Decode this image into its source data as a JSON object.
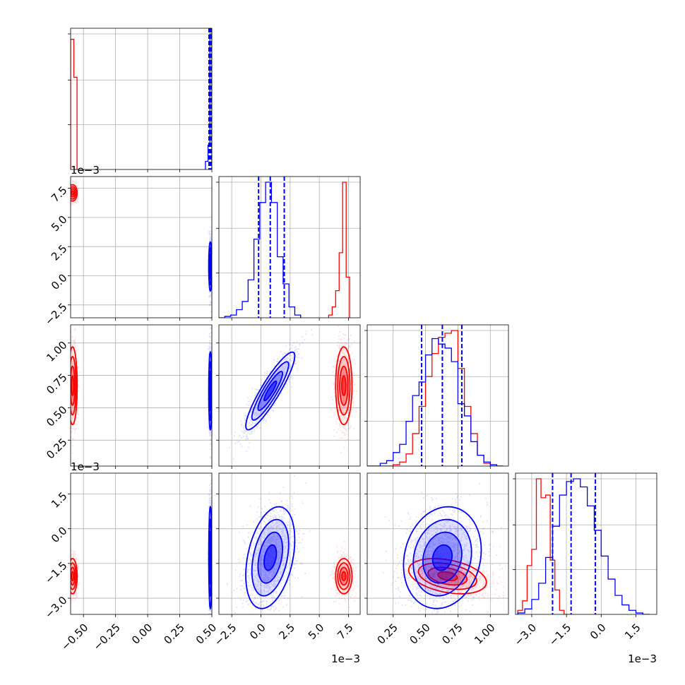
{
  "chart_data": {
    "type": "corner",
    "grid": true,
    "colors": {
      "red": "#ff0000",
      "blue": "#0000ff",
      "grid": "#b0b0b0"
    },
    "params": [
      {
        "lim": [
          -0.6,
          0.5
        ],
        "ticks": [
          "−0.50",
          "−0.25",
          "0.00",
          "0.25",
          "0.50"
        ],
        "tick_values": [
          -0.5,
          -0.25,
          0.0,
          0.25,
          0.5
        ],
        "offset": ""
      },
      {
        "lim": [
          -3.6,
          8.5
        ],
        "ticks": [
          "−2.5",
          "0.0",
          "2.5",
          "5.0",
          "7.5"
        ],
        "tick_values": [
          -2.5,
          0.0,
          2.5,
          5.0,
          7.5
        ],
        "offset": "1e−3"
      },
      {
        "lim": [
          0.05,
          1.14
        ],
        "ticks": [
          "0.25",
          "0.50",
          "0.75",
          "1.00"
        ],
        "tick_values": [
          0.25,
          0.5,
          0.75,
          1.0
        ],
        "offset": ""
      },
      {
        "lim": [
          -3.7,
          2.4
        ],
        "ticks": [
          "−3.0",
          "−1.5",
          "0.0",
          "1.5"
        ],
        "tick_values": [
          -3.0,
          -1.5,
          0.0,
          1.5
        ],
        "offset": "1e−3"
      }
    ],
    "series": [
      {
        "color": "red",
        "mean": [
          -0.585,
          7.1,
          0.67,
          -2.05
        ],
        "std": [
          0.018,
          0.35,
          0.15,
          0.38
        ],
        "corr": {
          "1-2": 0.0,
          "1-3": 0.0,
          "2-3": -0.35
        },
        "hist": [
          {
            "edges": [
              -0.6,
              -0.575,
              -0.55
            ],
            "counts": [
              0.96,
              0.68
            ]
          },
          {
            "edges": [
              5.8,
              6.1,
              6.4,
              6.7,
              7.0,
              7.3,
              7.6
            ],
            "counts": [
              0.02,
              0.08,
              0.2,
              0.48,
              1.0,
              0.3
            ]
          },
          {
            "edges": [
              0.05,
              0.1,
              0.15,
              0.2,
              0.25,
              0.3,
              0.35,
              0.4,
              0.45,
              0.5,
              0.55,
              0.6,
              0.65,
              0.7,
              0.75,
              0.8,
              0.85,
              0.9,
              0.95,
              1.0,
              1.05,
              1.1
            ],
            "counts": [
              0,
              0,
              0,
              0,
              0.01,
              0.03,
              0.09,
              0.24,
              0.44,
              0.66,
              0.83,
              0.95,
              0.98,
              1.0,
              0.72,
              0.44,
              0.24,
              0.08,
              0.02,
              0,
              0
            ]
          },
          {
            "edges": [
              -3.6,
              -3.4,
              -3.2,
              -3.0,
              -2.8,
              -2.6,
              -2.4,
              -2.2,
              -2.0,
              -1.8,
              -1.6,
              -1.4
            ],
            "counts": [
              0.03,
              0.1,
              0.36,
              0.48,
              1.0,
              0.86,
              0.88,
              0.4,
              0.18,
              0.03,
              0
            ]
          }
        ]
      },
      {
        "color": "blue",
        "mean": [
          0.488,
          0.8,
          0.63,
          -1.25
        ],
        "std": [
          0.006,
          1.05,
          0.15,
          1.1
        ],
        "corr": {
          "1-2": 0.9,
          "1-3": 0.35,
          "2-3": 0.15
        },
        "quantiles": [
          [
            0.478,
            0.488,
            0.494
          ],
          [
            -0.2,
            0.8,
            2.0
          ],
          [
            0.47,
            0.63,
            0.78
          ],
          [
            -2.1,
            -1.3,
            -0.25
          ]
        ],
        "hist": [
          {
            "edges": [
              0.45,
              0.47,
              0.485,
              0.5
            ],
            "counts": [
              0.06,
              0.18,
              1.0
            ]
          },
          {
            "edges": [
              -3.6,
              -3.1,
              -2.6,
              -2.1,
              -1.6,
              -1.1,
              -0.6,
              -0.1,
              0.4,
              0.9,
              1.4,
              1.9,
              2.4,
              2.9,
              3.4
            ],
            "counts": [
              0,
              0.01,
              0.02,
              0.06,
              0.12,
              0.28,
              0.58,
              0.85,
              1.0,
              0.85,
              0.45,
              0.25,
              0.08,
              0.02
            ]
          },
          {
            "edges": [
              0.05,
              0.1,
              0.15,
              0.2,
              0.25,
              0.3,
              0.35,
              0.4,
              0.45,
              0.5,
              0.55,
              0.6,
              0.65,
              0.7,
              0.75,
              0.8,
              0.85,
              0.9,
              0.95,
              1.0,
              1.05,
              1.1
            ],
            "counts": [
              0,
              0,
              0.02,
              0.04,
              0.1,
              0.16,
              0.33,
              0.52,
              0.62,
              0.82,
              0.94,
              0.9,
              0.87,
              0.77,
              0.46,
              0.37,
              0.18,
              0.08,
              0.03,
              0.01,
              0
            ]
          },
          {
            "edges": [
              -3.6,
              -3.3,
              -3.0,
              -2.7,
              -2.4,
              -2.1,
              -1.8,
              -1.5,
              -1.2,
              -0.9,
              -0.6,
              -0.3,
              0.0,
              0.3,
              0.6,
              0.9,
              1.2,
              1.5,
              1.8,
              2.1
            ],
            "counts": [
              0.01,
              0.04,
              0.11,
              0.23,
              0.42,
              0.65,
              0.88,
              0.98,
              1.0,
              0.94,
              0.8,
              0.62,
              0.43,
              0.26,
              0.14,
              0.07,
              0.03,
              0.01,
              0
            ]
          }
        ]
      }
    ]
  }
}
